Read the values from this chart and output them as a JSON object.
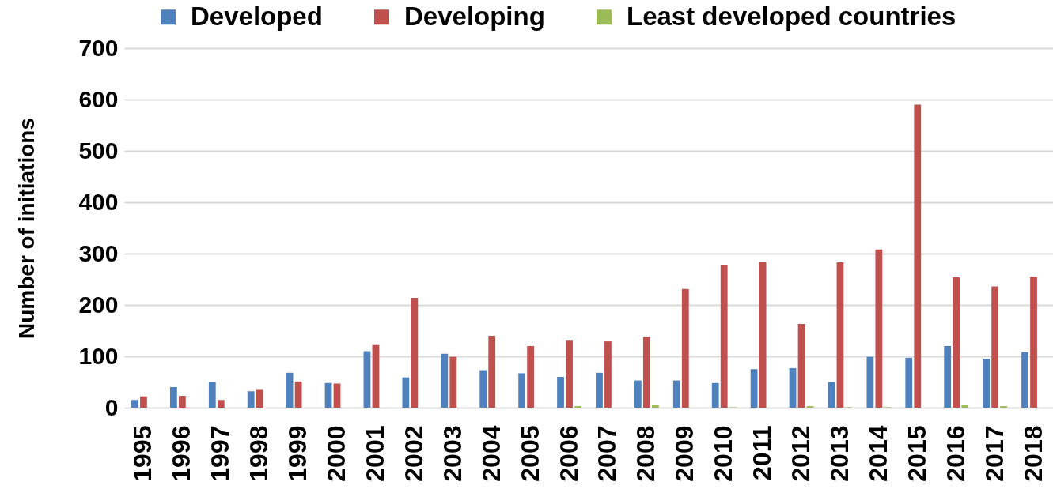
{
  "chart_data": {
    "type": "bar",
    "ylabel": "Number of initiations",
    "categories": [
      "1995",
      "1996",
      "1997",
      "1998",
      "1999",
      "2000",
      "2001",
      "2002",
      "2003",
      "2004",
      "2005",
      "2006",
      "2007",
      "2008",
      "2009",
      "2010",
      "2011",
      "2012",
      "2013",
      "2014",
      "2015",
      "2016",
      "2017",
      "2018"
    ],
    "series": [
      {
        "name": "Developed",
        "color": "#4f81bd",
        "values": [
          15,
          40,
          50,
          32,
          68,
          48,
          110,
          59,
          105,
          73,
          67,
          60,
          68,
          53,
          53,
          48,
          75,
          77,
          50,
          99,
          97,
          120,
          95,
          108
        ]
      },
      {
        "name": "Developing",
        "color": "#c0504d",
        "values": [
          22,
          23,
          15,
          36,
          51,
          47,
          122,
          214,
          99,
          140,
          120,
          132,
          129,
          138,
          231,
          277,
          283,
          163,
          283,
          308,
          590,
          254,
          236,
          255
        ]
      },
      {
        "name": "Least developed countries",
        "color": "#9bbb59",
        "values": [
          0,
          0,
          0,
          0,
          0,
          0,
          0,
          0,
          0,
          0,
          0,
          3,
          0,
          6,
          0,
          1,
          0,
          3,
          1,
          1,
          0,
          6,
          3,
          0
        ]
      }
    ],
    "ylim": [
      0,
      700
    ],
    "yticks": [
      0,
      100,
      200,
      300,
      400,
      500,
      600,
      700
    ],
    "grid": "y",
    "legend": "top"
  }
}
